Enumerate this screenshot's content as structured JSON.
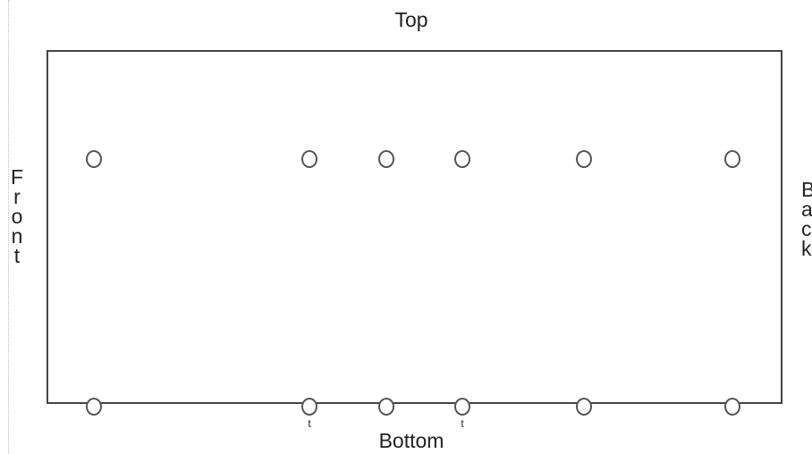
{
  "labels": {
    "top": "Top",
    "bottom": "Bottom",
    "front": "F\nr\no\nn\nt",
    "back": "B\na\nc\nk"
  },
  "pins": {
    "top_count": 6,
    "bottom_count": 6,
    "marked_bottom_pins": [
      2,
      4
    ],
    "mark_text": "t"
  }
}
